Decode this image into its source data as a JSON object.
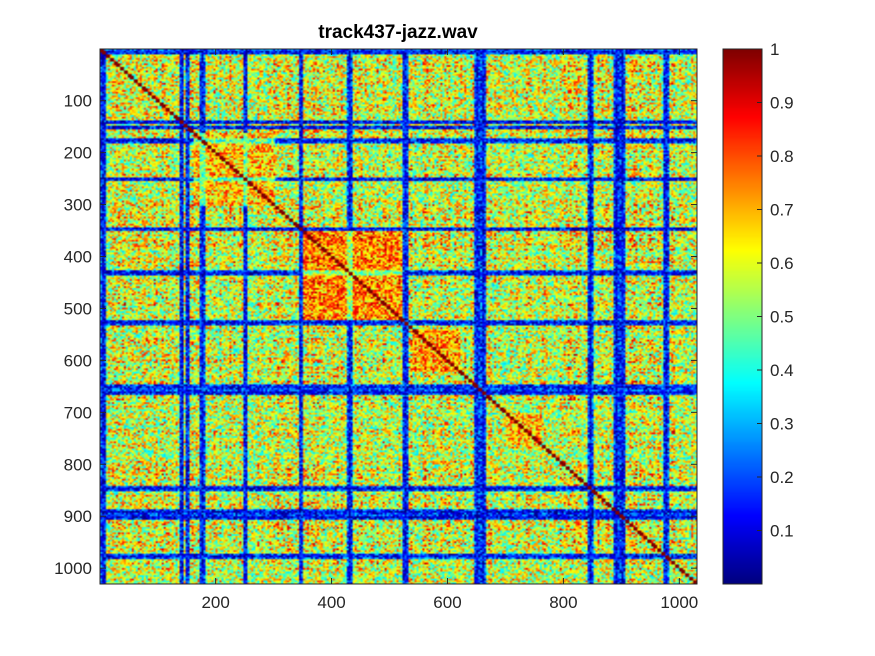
{
  "chart_data": {
    "type": "heatmap",
    "title": "track437-jazz.wav",
    "xlabel": "",
    "ylabel": "",
    "x_range": [
      1,
      1030
    ],
    "y_range": [
      1,
      1030
    ],
    "y_reversed": true,
    "x_ticks": [
      200,
      400,
      600,
      800,
      1000
    ],
    "y_ticks": [
      100,
      200,
      300,
      400,
      500,
      600,
      700,
      800,
      900,
      1000
    ],
    "colormap": "jet",
    "clim": [
      0,
      1
    ],
    "colorbar_ticks": [
      0.1,
      0.2,
      0.3,
      0.4,
      0.5,
      0.6,
      0.7,
      0.8,
      0.9,
      1
    ],
    "colorbar_tick_labels": [
      "0.1",
      "0.2",
      "0.3",
      "0.4",
      "0.5",
      "0.6",
      "0.7",
      "0.8",
      "0.9",
      "1"
    ],
    "diagonal_value": 1,
    "typical_value": 0.72,
    "low_similarity_bands": [
      5,
      140,
      150,
      175,
      250,
      345,
      430,
      525,
      650,
      660,
      845,
      890,
      900,
      975
    ],
    "high_similarity_blocks": [
      {
        "from": 350,
        "to": 520,
        "value": 0.9
      },
      {
        "from": 540,
        "to": 620,
        "value": 0.85
      },
      {
        "from": 160,
        "to": 300,
        "value": 0.8
      },
      {
        "from": 700,
        "to": 760,
        "value": 0.82
      }
    ]
  },
  "colors": {
    "axis": "#262626",
    "background": "#ffffff"
  }
}
